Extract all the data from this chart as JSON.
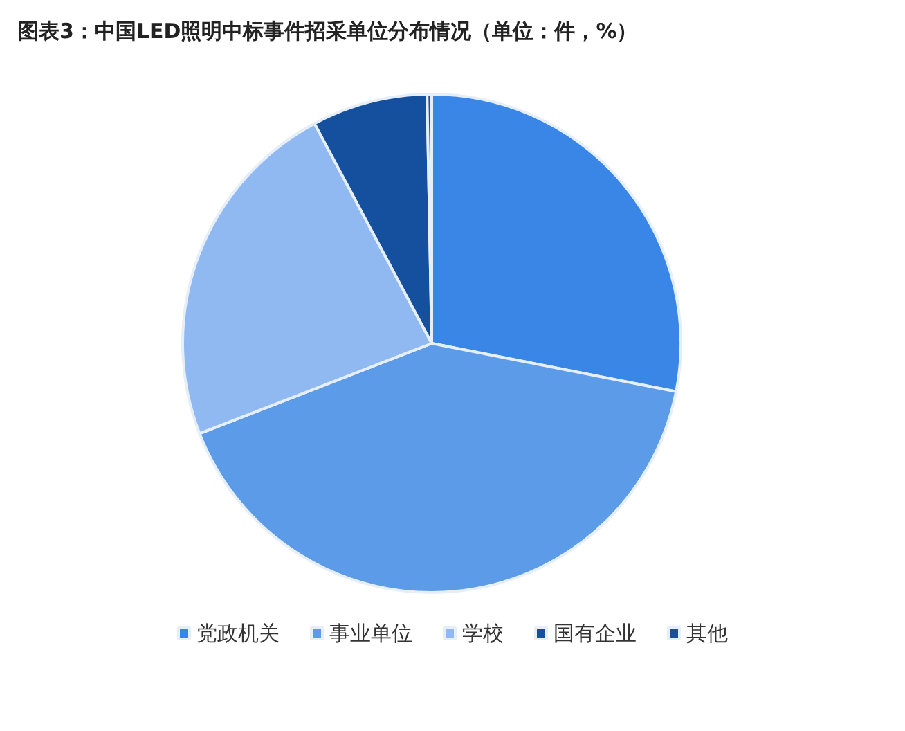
{
  "chart_data": {
    "type": "pie",
    "title": "图表3：中国LED照明中标事件招采单位分布情况（单位：件，%）",
    "categories": [
      "党政机关",
      "事业单位",
      "学校",
      "国有企业",
      "其他"
    ],
    "values": [
      28.1,
      41.0,
      23.1,
      7.5,
      0.3
    ],
    "colors": [
      "#3a86e6",
      "#5b9be8",
      "#8fb9f0",
      "#15509e",
      "#1f4f93"
    ],
    "legend": "bottom"
  }
}
